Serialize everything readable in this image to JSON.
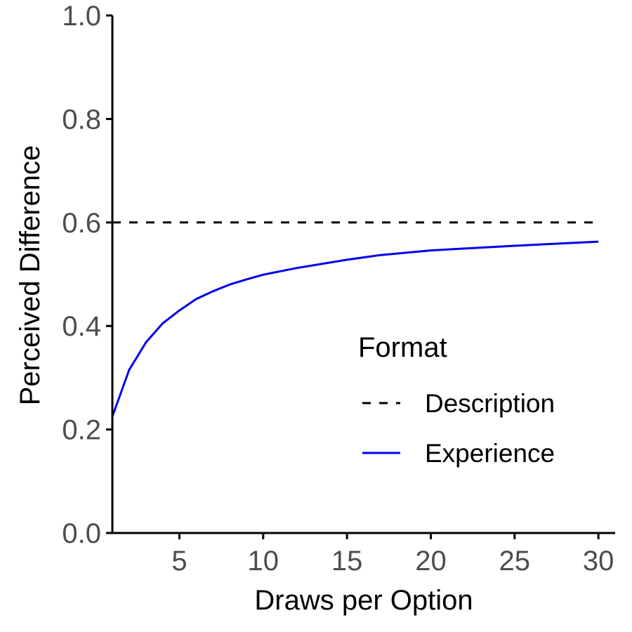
{
  "chart_data": {
    "type": "line",
    "xlabel": "Draws per Option",
    "ylabel": "Perceived Difference",
    "xlim": [
      1,
      31
    ],
    "ylim": [
      0,
      1
    ],
    "x_ticks": [
      5,
      10,
      15,
      20,
      25,
      30
    ],
    "x_tick_labels": [
      "5",
      "10",
      "15",
      "20",
      "25",
      "30"
    ],
    "y_ticks": [
      0,
      0.2,
      0.4,
      0.6,
      0.8,
      1.0
    ],
    "y_tick_labels": [
      "0.0",
      "0.2",
      "0.4",
      "0.6",
      "0.8",
      "1.0"
    ],
    "grid": false,
    "legend": {
      "title": "Format",
      "placement": "inside-bottom-right"
    },
    "series": [
      {
        "name": "Description",
        "style": "dashed",
        "color": "#000000",
        "x": [
          1,
          30
        ],
        "y": [
          0.6,
          0.6
        ]
      },
      {
        "name": "Experience",
        "style": "solid",
        "color": "#0000ee",
        "x": [
          1,
          2,
          3,
          4,
          5,
          6,
          7,
          8,
          9,
          10,
          12,
          15,
          17,
          20,
          25,
          30
        ],
        "y": [
          0.225,
          0.315,
          0.368,
          0.405,
          0.43,
          0.452,
          0.467,
          0.48,
          0.49,
          0.499,
          0.512,
          0.528,
          0.537,
          0.546,
          0.555,
          0.563
        ]
      }
    ]
  }
}
